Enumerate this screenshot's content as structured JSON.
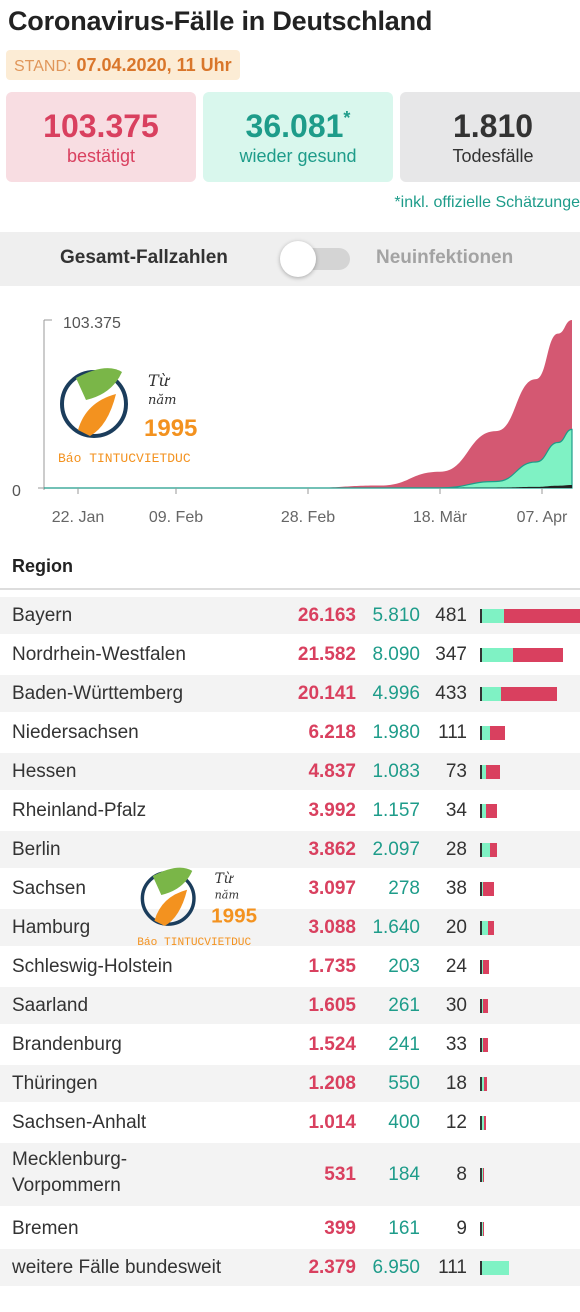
{
  "header": {
    "title": "Coronavirus-Fälle in Deutschland",
    "stand_label": "STAND:",
    "stand_value": "07.04.2020, 11 Uhr"
  },
  "summary": {
    "confirmed": {
      "value": "103.375",
      "label": "bestätigt"
    },
    "recovered": {
      "value": "36.081",
      "mark": "*",
      "label": "wieder gesund"
    },
    "deaths": {
      "value": "1.810",
      "label": "Todesfälle"
    },
    "footnote": "*inkl. offizielle Schätzunge"
  },
  "toggle": {
    "left_label": "Gesamt-Fallzahlen",
    "right_label": "Neuinfektionen",
    "state": "off"
  },
  "watermark": {
    "line1": "Từ",
    "line2": "năm",
    "year": "1995",
    "brand": "Báo TINTUCVIETDUC"
  },
  "colors": {
    "confirmed": "#d9405f",
    "recovered": "#7ff2c4",
    "recovered_text": "#1e9c8a",
    "deaths": "#333333"
  },
  "table": {
    "header": "Region"
  },
  "chart_data": [
    {
      "type": "area",
      "title": "",
      "y_axis_labels": [
        "103.375",
        "0"
      ],
      "ylim": [
        0,
        103375
      ],
      "x_tick_labels": [
        "22. Jan",
        "09. Feb",
        "28. Feb",
        "18. Mär",
        "07. Apr"
      ],
      "x": [
        "22. Jan",
        "09. Feb",
        "28. Feb",
        "10. Mär",
        "18. Mär",
        "25. Mär",
        "31. Mär",
        "04. Apr",
        "07. Apr"
      ],
      "series": [
        {
          "name": "bestätigt",
          "values": [
            0,
            16,
            60,
            1500,
            10000,
            35000,
            67000,
            95000,
            103375
          ]
        },
        {
          "name": "wieder gesund",
          "values": [
            0,
            0,
            16,
            50,
            100,
            4000,
            16000,
            28000,
            36081
          ]
        },
        {
          "name": "Todesfälle",
          "values": [
            0,
            0,
            0,
            2,
            25,
            180,
            700,
            1400,
            1810
          ]
        }
      ]
    },
    {
      "type": "table",
      "columns": [
        "Region",
        "bestätigt",
        "wieder gesund",
        "Todesfälle"
      ],
      "rows": [
        {
          "region": "Bayern",
          "confirmed": "26.163",
          "recovered": "5.810",
          "deaths": "481",
          "c": 26163,
          "r": 5810,
          "d": 481
        },
        {
          "region": "Nordrhein-Westfalen",
          "confirmed": "21.582",
          "recovered": "8.090",
          "deaths": "347",
          "c": 21582,
          "r": 8090,
          "d": 347
        },
        {
          "region": "Baden-Württemberg",
          "confirmed": "20.141",
          "recovered": "4.996",
          "deaths": "433",
          "c": 20141,
          "r": 4996,
          "d": 433
        },
        {
          "region": "Niedersachsen",
          "confirmed": "6.218",
          "recovered": "1.980",
          "deaths": "111",
          "c": 6218,
          "r": 1980,
          "d": 111
        },
        {
          "region": "Hessen",
          "confirmed": "4.837",
          "recovered": "1.083",
          "deaths": "73",
          "c": 4837,
          "r": 1083,
          "d": 73
        },
        {
          "region": "Rheinland-Pfalz",
          "confirmed": "3.992",
          "recovered": "1.157",
          "deaths": "34",
          "c": 3992,
          "r": 1157,
          "d": 34
        },
        {
          "region": "Berlin",
          "confirmed": "3.862",
          "recovered": "2.097",
          "deaths": "28",
          "c": 3862,
          "r": 2097,
          "d": 28
        },
        {
          "region": "Sachsen",
          "confirmed": "3.097",
          "recovered": "278",
          "deaths": "38",
          "c": 3097,
          "r": 278,
          "d": 38
        },
        {
          "region": "Hamburg",
          "confirmed": "3.088",
          "recovered": "1.640",
          "deaths": "20",
          "c": 3088,
          "r": 1640,
          "d": 20
        },
        {
          "region": "Schleswig-Holstein",
          "confirmed": "1.735",
          "recovered": "203",
          "deaths": "24",
          "c": 1735,
          "r": 203,
          "d": 24
        },
        {
          "region": "Saarland",
          "confirmed": "1.605",
          "recovered": "261",
          "deaths": "30",
          "c": 1605,
          "r": 261,
          "d": 30
        },
        {
          "region": "Brandenburg",
          "confirmed": "1.524",
          "recovered": "241",
          "deaths": "33",
          "c": 1524,
          "r": 241,
          "d": 33
        },
        {
          "region": "Thüringen",
          "confirmed": "1.208",
          "recovered": "550",
          "deaths": "18",
          "c": 1208,
          "r": 550,
          "d": 18
        },
        {
          "region": "Sachsen-Anhalt",
          "confirmed": "1.014",
          "recovered": "400",
          "deaths": "12",
          "c": 1014,
          "r": 400,
          "d": 12
        },
        {
          "region": "Mecklenburg-Vorpommern",
          "region_lines": [
            "Mecklenburg-",
            "Vorpommern"
          ],
          "confirmed": "531",
          "recovered": "184",
          "deaths": "8",
          "c": 531,
          "r": 184,
          "d": 8
        },
        {
          "region": "Bremen",
          "confirmed": "399",
          "recovered": "161",
          "deaths": "9",
          "c": 399,
          "r": 161,
          "d": 9
        },
        {
          "region": "weitere Fälle bundesweit",
          "confirmed": "2.379",
          "recovered": "6.950",
          "deaths": "111",
          "c": 2379,
          "r": 6950,
          "d": 111
        }
      ]
    }
  ]
}
